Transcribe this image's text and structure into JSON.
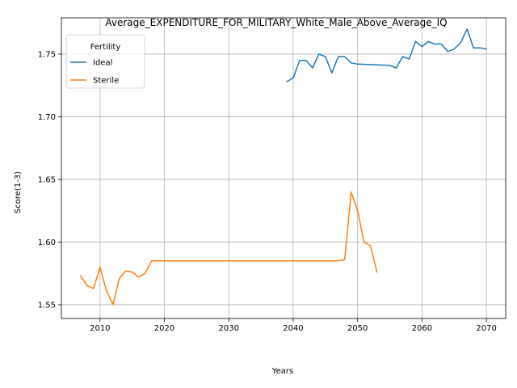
{
  "chart_data": {
    "type": "line",
    "title": "Average_EXPENDITURE_FOR_MILITARY_White_Male_Above_Average_IQ",
    "xlabel": "Years",
    "ylabel": "Score(1-3)",
    "xlim": [
      2004,
      2073
    ],
    "ylim": [
      1.539,
      1.779
    ],
    "xticks": [
      2010,
      2020,
      2030,
      2040,
      2050,
      2060,
      2070
    ],
    "yticks": [
      1.55,
      1.6,
      1.65,
      1.7,
      1.75
    ],
    "grid": true,
    "legend": {
      "title": "Fertility",
      "placement": "top-left"
    },
    "series": [
      {
        "name": "Ideal",
        "color": "#1f77b4",
        "x": [
          2039,
          2040,
          2041,
          2042,
          2043,
          2044,
          2045,
          2046,
          2047,
          2048,
          2049,
          2050,
          2055,
          2056,
          2057,
          2058,
          2059,
          2060,
          2061,
          2062,
          2063,
          2064,
          2065,
          2066,
          2067,
          2068,
          2069,
          2070
        ],
        "y": [
          1.728,
          1.731,
          1.745,
          1.745,
          1.739,
          1.75,
          1.748,
          1.735,
          1.748,
          1.748,
          1.743,
          1.742,
          1.741,
          1.739,
          1.748,
          1.746,
          1.76,
          1.756,
          1.76,
          1.758,
          1.758,
          1.752,
          1.754,
          1.759,
          1.77,
          1.755,
          1.755,
          1.754
        ]
      },
      {
        "name": "Sterile",
        "color": "#ff7f0e",
        "x": [
          2007,
          2008,
          2009,
          2010,
          2011,
          2012,
          2013,
          2014,
          2015,
          2016,
          2017,
          2018,
          2019,
          2047,
          2048,
          2049,
          2050,
          2051,
          2052,
          2053
        ],
        "y": [
          1.573,
          1.565,
          1.563,
          1.58,
          1.561,
          1.55,
          1.571,
          1.577,
          1.576,
          1.572,
          1.575,
          1.585,
          1.585,
          1.585,
          1.586,
          1.64,
          1.625,
          1.6,
          1.597,
          1.576
        ]
      }
    ]
  }
}
